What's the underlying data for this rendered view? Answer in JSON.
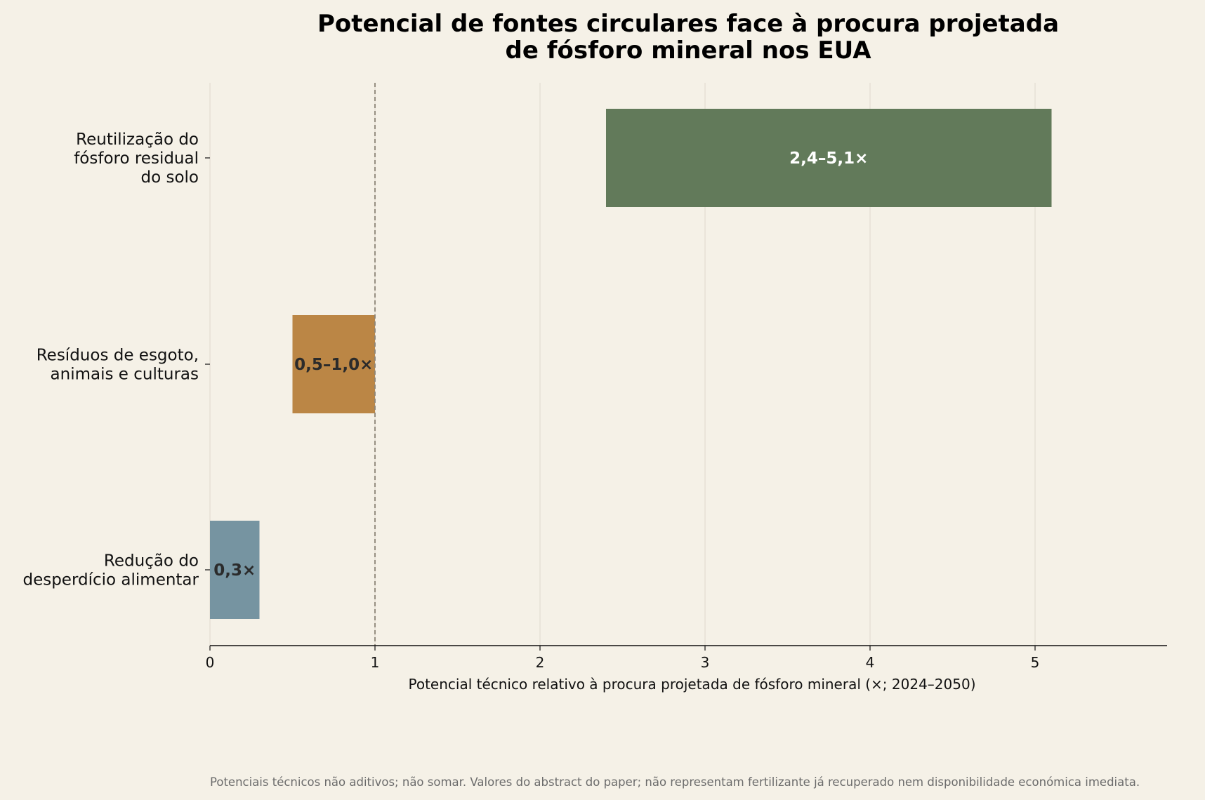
{
  "chart_data": {
    "type": "bar",
    "orientation": "horizontal",
    "title": [
      "Potencial de fontes circulares face à procura projetada",
      "de fósforo mineral nos EUA"
    ],
    "xlabel": "Potencial técnico relativo à procura projetada de fósforo mineral (×; 2024–2050)",
    "xlim": [
      0,
      5.8
    ],
    "xticks": [
      0,
      1,
      2,
      3,
      4,
      5
    ],
    "xtick_labels": [
      "0",
      "1",
      "2",
      "3",
      "4",
      "5"
    ],
    "grid": "vertical",
    "reference_line": 1,
    "bars": [
      {
        "label": [
          "Reutilização do",
          "fósforo residual",
          "do solo"
        ],
        "start": 2.4,
        "end": 5.1,
        "value_label": "2,4–5,1×",
        "color": "#627a5a",
        "label_color": "#ffffff"
      },
      {
        "label": [
          "Resíduos de esgoto,",
          "animais e culturas"
        ],
        "start": 0.5,
        "end": 1.0,
        "value_label": "0,5–1,0×",
        "color": "#bb8645",
        "label_color": "#2b2b2b"
      },
      {
        "label": [
          "Redução do",
          "desperdício alimentar"
        ],
        "start": 0,
        "end": 0.3,
        "value_label": "0,3×",
        "color": "#7694a1",
        "label_color": "#2b2b2b"
      }
    ],
    "footnote": "Potenciais técnicos não aditivos; não somar. Valores do abstract do paper; não representam fertilizante já recuperado nem disponibilidade económica imediata."
  }
}
